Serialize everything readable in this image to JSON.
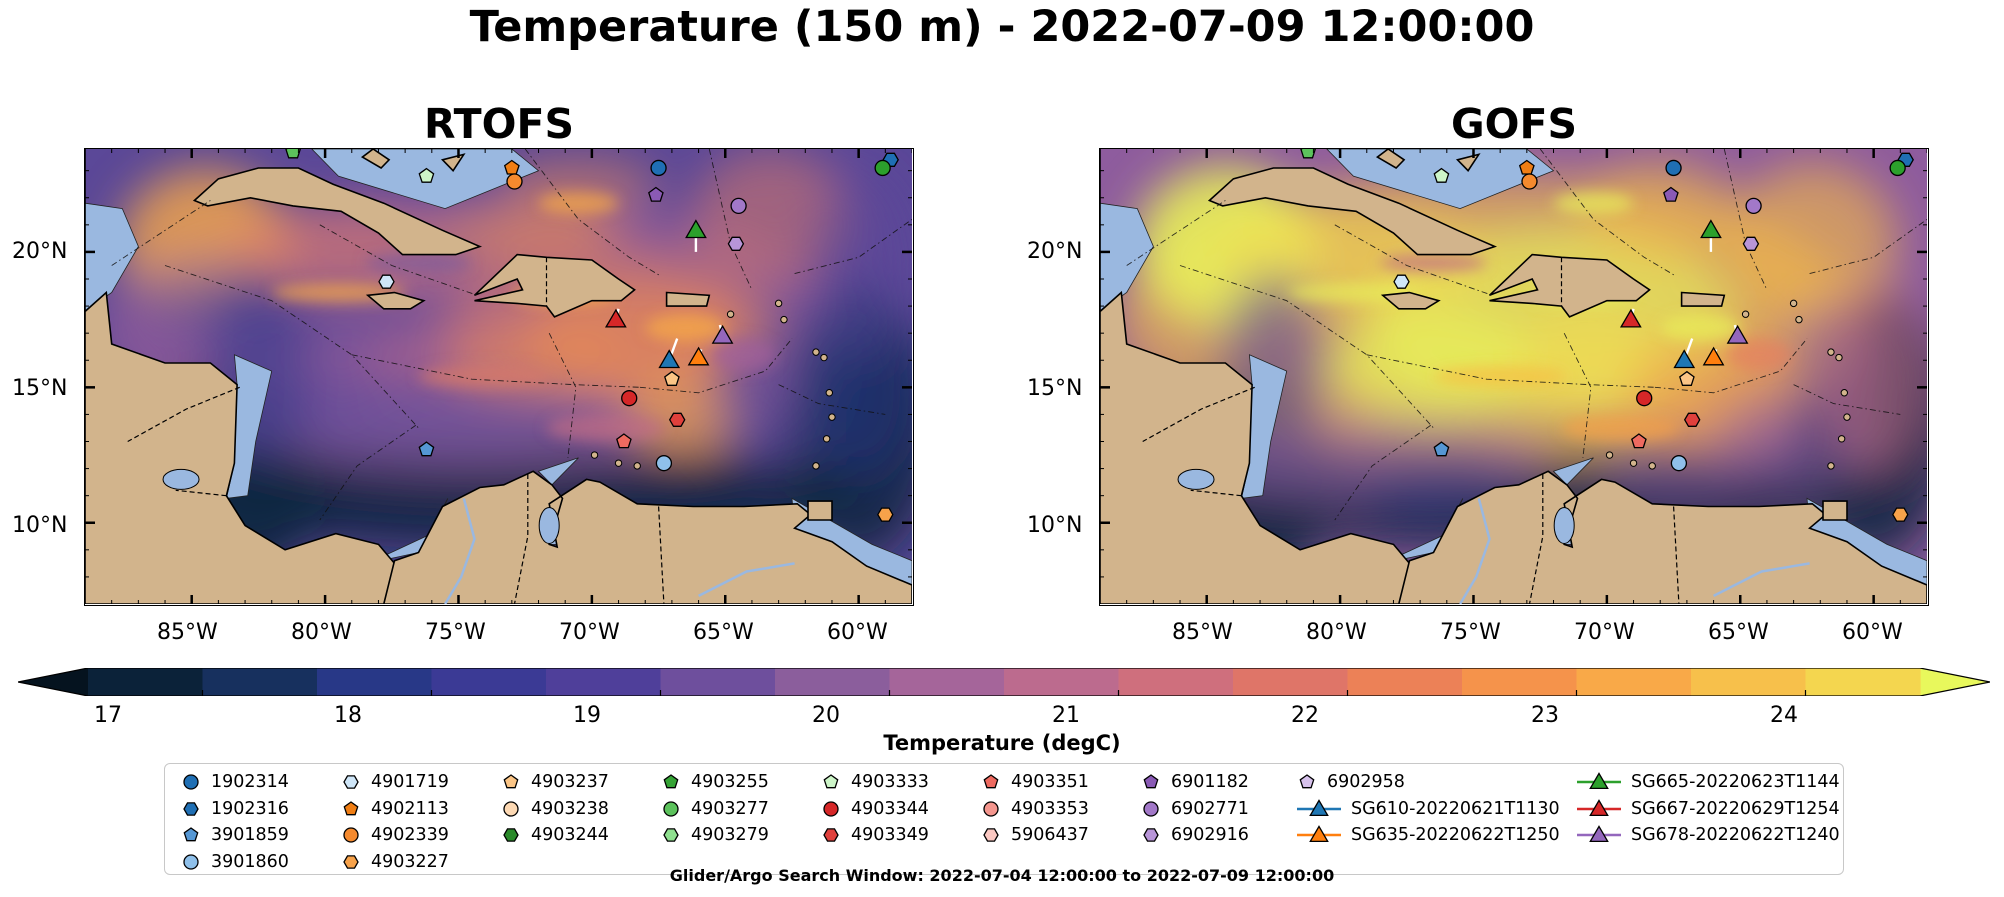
{
  "figure": {
    "title": "Temperature (150 m) - 2022-07-09 12:00:00",
    "footnote": "Glider/Argo Search Window: 2022-07-04 12:00:00 to 2022-07-09 12:00:00"
  },
  "panels": [
    {
      "title": "RTOFS",
      "palette": [
        "#0d2540",
        "#1d3370",
        "#3b3a8c",
        "#5b4898",
        "#7e5c9c",
        "#a0609a",
        "#c06c85",
        "#d97a6a",
        "#ee8e52",
        "#f7a947",
        "#f6c448"
      ]
    },
    {
      "title": "GOFS",
      "palette": [
        "#0d2540",
        "#2a357a",
        "#5b4898",
        "#8e5c9e",
        "#c06c85",
        "#e48060",
        "#f3a04a",
        "#f6be45",
        "#f3dc4e",
        "#e8f05a",
        "#eaf35c"
      ]
    }
  ],
  "map": {
    "lon_range": [
      -89,
      -58
    ],
    "lat_range": [
      7,
      23.8
    ],
    "lon_ticks": [
      "85°W",
      "80°W",
      "75°W",
      "70°W",
      "65°W",
      "60°W"
    ],
    "lat_ticks": [
      "20°N",
      "15°N",
      "10°N"
    ],
    "land_color": "#d2b48c",
    "shelf_color": "#9ab8e0"
  },
  "colorbar": {
    "label": "Temperature (degC)",
    "range": [
      16.5,
      24.5
    ],
    "ticks": [
      "17",
      "18",
      "19",
      "20",
      "21",
      "22",
      "23",
      "24"
    ],
    "tick_values": [
      17,
      18,
      19,
      20,
      21,
      22,
      23,
      24
    ],
    "colors": [
      "#0b2239",
      "#17305e",
      "#283887",
      "#3b3a95",
      "#4f3f9a",
      "#6e4f9d",
      "#8b5e9c",
      "#a5659a",
      "#bc6b8e",
      "#cf6f7d",
      "#df7568",
      "#ec8157",
      "#f5934b",
      "#f9a948",
      "#f7c04b",
      "#f4d64f"
    ],
    "extend_min_color": "#05131f",
    "extend_max_color": "#e8f85c"
  },
  "legend": {
    "columns": [
      [
        {
          "label": "1902314",
          "marker": "circle",
          "color": "#1f6fb4"
        },
        {
          "label": "1902316",
          "marker": "hexagon",
          "color": "#1f6fb4"
        },
        {
          "label": "3901859",
          "marker": "pentagon",
          "color": "#5597d4"
        },
        {
          "label": "3901860",
          "marker": "circle",
          "color": "#8fc0ea"
        }
      ],
      [
        {
          "label": "4901719",
          "marker": "hexagon",
          "color": "#cfe6f8"
        },
        {
          "label": "4902113",
          "marker": "pentagon",
          "color": "#f07e14"
        },
        {
          "label": "4902339",
          "marker": "circle",
          "color": "#f58a2e"
        },
        {
          "label": "4903227",
          "marker": "hexagon",
          "color": "#f7a24a"
        }
      ],
      [
        {
          "label": "4903237",
          "marker": "pentagon",
          "color": "#fbc586"
        },
        {
          "label": "4903238",
          "marker": "circle",
          "color": "#fdd9b4"
        },
        {
          "label": "4903244",
          "marker": "hexagon",
          "color": "#2a8a2a"
        }
      ],
      [
        {
          "label": "4903255",
          "marker": "pentagon",
          "color": "#35a335"
        },
        {
          "label": "4903277",
          "marker": "circle",
          "color": "#5cc25c"
        },
        {
          "label": "4903279",
          "marker": "hexagon",
          "color": "#8fe08f"
        }
      ],
      [
        {
          "label": "4903333",
          "marker": "pentagon",
          "color": "#cdf5c8"
        },
        {
          "label": "4903344",
          "marker": "circle",
          "color": "#d62728"
        },
        {
          "label": "4903349",
          "marker": "hexagon",
          "color": "#e0403c"
        }
      ],
      [
        {
          "label": "4903351",
          "marker": "pentagon",
          "color": "#ee6a60"
        },
        {
          "label": "4903353",
          "marker": "circle",
          "color": "#f4968e"
        },
        {
          "label": "5906437",
          "marker": "hexagon",
          "color": "#fbc8c2"
        }
      ],
      [
        {
          "label": "6901182",
          "marker": "pentagon",
          "color": "#8a5ab5"
        },
        {
          "label": "6902771",
          "marker": "circle",
          "color": "#a278c8"
        },
        {
          "label": "6902916",
          "marker": "hexagon",
          "color": "#b895d8"
        }
      ],
      [
        {
          "label": "6902958",
          "marker": "pentagon",
          "color": "#d7c2ec"
        },
        {
          "label": "SG610-20220621T1130",
          "marker": "triangle-line",
          "color": "#1f77b4"
        },
        {
          "label": "SG635-20220622T1250",
          "marker": "triangle-line",
          "color": "#ff7f0e"
        }
      ],
      [
        {
          "label": "SG665-20220623T1144",
          "marker": "triangle-line",
          "color": "#2ca02c"
        },
        {
          "label": "SG667-20220629T1254",
          "marker": "triangle-line",
          "color": "#d62728"
        },
        {
          "label": "SG678-20220622T1240",
          "marker": "triangle-line",
          "color": "#9467bd"
        }
      ]
    ]
  },
  "floats": [
    {
      "lon": -67.5,
      "lat": 23.1,
      "marker": "circle",
      "color": "#1f6fb4"
    },
    {
      "lon": -58.8,
      "lat": 23.4,
      "marker": "hexagon",
      "color": "#1f6fb4"
    },
    {
      "lon": -76.2,
      "lat": 12.7,
      "marker": "pentagon",
      "color": "#5597d4"
    },
    {
      "lon": -67.3,
      "lat": 12.2,
      "marker": "circle",
      "color": "#8fc0ea"
    },
    {
      "lon": -77.7,
      "lat": 18.9,
      "marker": "hexagon",
      "color": "#cfe6f8"
    },
    {
      "lon": -73.0,
      "lat": 23.1,
      "marker": "pentagon",
      "color": "#f07e14"
    },
    {
      "lon": -72.9,
      "lat": 22.6,
      "marker": "circle",
      "color": "#f58a2e"
    },
    {
      "lon": -59.0,
      "lat": 10.3,
      "marker": "hexagon",
      "color": "#f7a24a"
    },
    {
      "lon": -67.0,
      "lat": 15.3,
      "marker": "pentagon",
      "color": "#fbc586"
    },
    {
      "lon": -59.1,
      "lat": 23.1,
      "marker": "circle",
      "color": "#2ca02c"
    },
    {
      "lon": -81.2,
      "lat": 23.7,
      "marker": "pentagon",
      "color": "#5cc25c"
    },
    {
      "lon": -76.2,
      "lat": 22.8,
      "marker": "pentagon",
      "color": "#cdf5c8"
    },
    {
      "lon": -68.6,
      "lat": 14.6,
      "marker": "circle",
      "color": "#d62728"
    },
    {
      "lon": -66.8,
      "lat": 13.8,
      "marker": "hexagon",
      "color": "#e0403c"
    },
    {
      "lon": -68.8,
      "lat": 13.0,
      "marker": "pentagon",
      "color": "#ee6a60"
    },
    {
      "lon": -67.6,
      "lat": 22.1,
      "marker": "pentagon",
      "color": "#8a5ab5"
    },
    {
      "lon": -64.5,
      "lat": 21.7,
      "marker": "circle",
      "color": "#a278c8"
    },
    {
      "lon": -64.6,
      "lat": 20.3,
      "marker": "hexagon",
      "color": "#b895d8"
    }
  ],
  "gliders": [
    {
      "lon": -66.1,
      "lat": 20.8,
      "color": "#2ca02c",
      "track": [
        [
          -66.1,
          20.0
        ],
        [
          -66.1,
          20.8
        ]
      ]
    },
    {
      "lon": -69.1,
      "lat": 17.5,
      "color": "#d62728",
      "track": [
        [
          -69.0,
          17.9
        ],
        [
          -69.1,
          17.5
        ]
      ]
    },
    {
      "lon": -67.1,
      "lat": 16.0,
      "color": "#1f77b4",
      "track": [
        [
          -66.8,
          16.8
        ],
        [
          -67.1,
          16.0
        ]
      ]
    },
    {
      "lon": -66.0,
      "lat": 16.1,
      "color": "#ff7f0e",
      "track": [
        [
          -65.9,
          16.4
        ],
        [
          -66.0,
          16.1
        ]
      ]
    },
    {
      "lon": -65.1,
      "lat": 16.9,
      "color": "#9467bd",
      "track": [
        [
          -65.2,
          17.3
        ],
        [
          -65.1,
          16.9
        ]
      ]
    }
  ]
}
